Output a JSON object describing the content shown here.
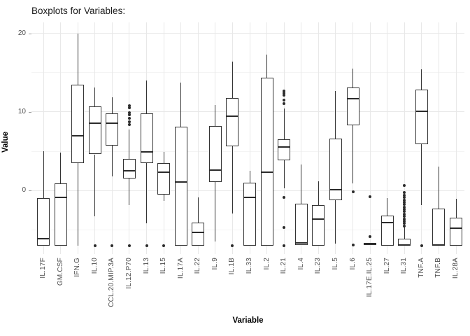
{
  "chart_data": {
    "type": "boxplot",
    "title": "Boxplots for Variables:",
    "xlabel": "Variable",
    "ylabel": "Value",
    "ylim": [
      -8.1,
      21.4
    ],
    "yticks_major": [
      0,
      10,
      20
    ],
    "yticks_minor": [
      -5,
      5,
      15
    ],
    "grid": "on",
    "legend": "none",
    "box_color": "#333333",
    "box_fill": "#ffffff",
    "categories": [
      "IL.17F",
      "GM.CSF",
      "IFN.G",
      "IL.10",
      "CCL.20.MIP.3A",
      "IL.12.P70",
      "IL.13",
      "IL.15",
      "IL.17A",
      "IL.22",
      "IL.9",
      "IL.1B",
      "IL.33",
      "IL.2",
      "IL.21",
      "IL.4",
      "IL.23",
      "IL.5",
      "IL.6",
      "IL.17E.IL.25",
      "IL.27",
      "IL.31",
      "TNF.A",
      "TNF.B",
      "IL.28A"
    ],
    "series": [
      {
        "name": "IL.17F",
        "whisker_low": -7.0,
        "q1": -7.0,
        "median": -6.1,
        "q3": -1.0,
        "whisker_high": 5.0,
        "outliers": []
      },
      {
        "name": "GM.CSF",
        "whisker_low": -7.0,
        "q1": -7.0,
        "median": -0.9,
        "q3": 0.9,
        "whisker_high": 4.8,
        "outliers": []
      },
      {
        "name": "IFN.G",
        "whisker_low": -7.0,
        "q1": 3.5,
        "median": 7.0,
        "q3": 13.5,
        "whisker_high": 20.0,
        "outliers": []
      },
      {
        "name": "IL.10",
        "whisker_low": -3.3,
        "q1": 4.6,
        "median": 8.6,
        "q3": 10.7,
        "whisker_high": 13.1,
        "outliers": [
          -7.0
        ]
      },
      {
        "name": "CCL.20.MIP.3A",
        "whisker_low": 1.8,
        "q1": 5.7,
        "median": 8.6,
        "q3": 9.8,
        "whisker_high": 11.9,
        "outliers": [
          -7.0
        ]
      },
      {
        "name": "IL.12.P70",
        "whisker_low": -1.9,
        "q1": 1.5,
        "median": 2.5,
        "q3": 4.0,
        "whisker_high": 7.8,
        "outliers": [
          10.8,
          10.5,
          9.9,
          9.6,
          9.2,
          8.7,
          8.4,
          -7.0
        ]
      },
      {
        "name": "IL.13",
        "whisker_low": -4.2,
        "q1": 3.5,
        "median": 4.9,
        "q3": 9.8,
        "whisker_high": 14.0,
        "outliers": [
          -7.0
        ]
      },
      {
        "name": "IL.15",
        "whisker_low": -1.3,
        "q1": -0.5,
        "median": 2.3,
        "q3": 3.5,
        "whisker_high": 4.9,
        "outliers": [
          -7.0
        ]
      },
      {
        "name": "IL.17A",
        "whisker_low": -7.0,
        "q1": -7.0,
        "median": 1.1,
        "q3": 8.1,
        "whisker_high": 13.7,
        "outliers": []
      },
      {
        "name": "IL.22",
        "whisker_low": -7.0,
        "q1": -7.0,
        "median": -5.3,
        "q3": -4.1,
        "whisker_high": -0.9,
        "outliers": []
      },
      {
        "name": "IL.9",
        "whisker_low": -6.5,
        "q1": 1.1,
        "median": 2.6,
        "q3": 8.2,
        "whisker_high": 10.9,
        "outliers": []
      },
      {
        "name": "IL.1B",
        "whisker_low": -2.9,
        "q1": 5.6,
        "median": 9.5,
        "q3": 11.8,
        "whisker_high": 16.4,
        "outliers": [
          -7.0
        ]
      },
      {
        "name": "IL.33",
        "whisker_low": -7.0,
        "q1": -7.0,
        "median": -0.9,
        "q3": 1.0,
        "whisker_high": 2.5,
        "outliers": []
      },
      {
        "name": "IL.2",
        "whisker_low": -7.0,
        "q1": -7.0,
        "median": 2.3,
        "q3": 14.4,
        "whisker_high": 17.3,
        "outliers": []
      },
      {
        "name": "IL.21",
        "whisker_low": 0.3,
        "q1": 3.8,
        "median": 5.5,
        "q3": 6.5,
        "whisker_high": 10.4,
        "outliers": [
          12.7,
          12.4,
          12.1,
          11.5,
          11.1,
          -0.9,
          -4.7,
          -7.0
        ]
      },
      {
        "name": "IL.4",
        "whisker_low": -6.9,
        "q1": -6.9,
        "median": -6.7,
        "q3": -1.7,
        "whisker_high": 3.3,
        "outliers": []
      },
      {
        "name": "IL.23",
        "whisker_low": -7.0,
        "q1": -7.0,
        "median": -3.6,
        "q3": -1.9,
        "whisker_high": 1.2,
        "outliers": []
      },
      {
        "name": "IL.5",
        "whisker_low": -6.8,
        "q1": -1.2,
        "median": 0.1,
        "q3": 6.6,
        "whisker_high": 12.7,
        "outliers": []
      },
      {
        "name": "IL.6",
        "whisker_low": 0.9,
        "q1": 8.3,
        "median": 11.7,
        "q3": 13.1,
        "whisker_high": 15.5,
        "outliers": [
          -0.2,
          -6.9
        ]
      },
      {
        "name": "IL.17E.IL.25",
        "whisker_low": -6.8,
        "q1": -6.8,
        "median": -6.8,
        "q3": -6.8,
        "whisker_high": -6.8,
        "outliers": [
          -0.8,
          -5.9
        ]
      },
      {
        "name": "IL.27",
        "whisker_low": -7.0,
        "q1": -7.0,
        "median": -4.1,
        "q3": -3.2,
        "whisker_high": -1.0,
        "outliers": []
      },
      {
        "name": "IL.31",
        "whisker_low": -7.0,
        "q1": -7.0,
        "median": -6.9,
        "q3": -6.1,
        "whisker_high": -4.6,
        "outliers": [
          0.6,
          -0.3,
          -0.6,
          -0.9,
          -1.2,
          -1.5,
          -1.8,
          -2.1,
          -2.4,
          -2.7,
          -3.0,
          -3.3,
          -3.6,
          -3.9,
          -4.2,
          -4.5
        ]
      },
      {
        "name": "TNF.A",
        "whisker_low": -1.9,
        "q1": 5.9,
        "median": 10.1,
        "q3": 12.8,
        "whisker_high": 15.4,
        "outliers": [
          -7.0
        ]
      },
      {
        "name": "TNF.B",
        "whisker_low": -7.0,
        "q1": -7.0,
        "median": -6.9,
        "q3": -2.3,
        "whisker_high": 3.0,
        "outliers": []
      },
      {
        "name": "IL.28A",
        "whisker_low": -7.0,
        "q1": -7.0,
        "median": -4.8,
        "q3": -3.5,
        "whisker_high": -1.1,
        "outliers": []
      }
    ]
  }
}
